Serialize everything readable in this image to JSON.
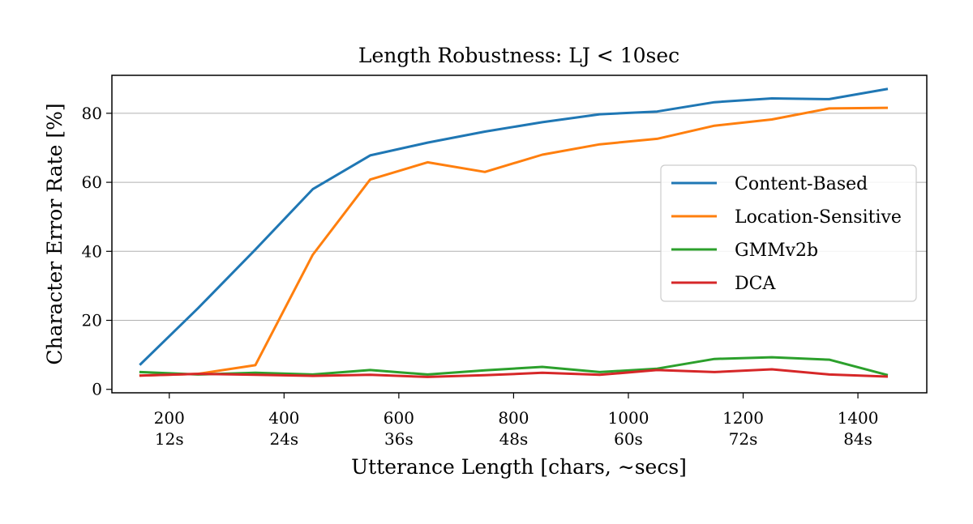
{
  "chart_data": {
    "type": "line",
    "title": "Length Robustness: LJ < 10sec",
    "xlabel": "Utterance Length [chars, ∼secs]",
    "ylabel": "Character Error Rate [%]",
    "xlim": [
      100,
      1520
    ],
    "ylim": [
      -1,
      91
    ],
    "x": [
      150,
      250,
      350,
      450,
      550,
      650,
      750,
      850,
      950,
      1050,
      1150,
      1250,
      1350,
      1450
    ],
    "x_ticks": [
      {
        "value": 200,
        "label": "200",
        "sublabel": "12s"
      },
      {
        "value": 400,
        "label": "400",
        "sublabel": "24s"
      },
      {
        "value": 600,
        "label": "600",
        "sublabel": "36s"
      },
      {
        "value": 800,
        "label": "800",
        "sublabel": "48s"
      },
      {
        "value": 1000,
        "label": "1000",
        "sublabel": "60s"
      },
      {
        "value": 1200,
        "label": "1200",
        "sublabel": "72s"
      },
      {
        "value": 1400,
        "label": "1400",
        "sublabel": "84s"
      }
    ],
    "y_ticks": [
      0,
      20,
      40,
      60,
      80
    ],
    "grid": "horizontal",
    "legend_position": "center-right",
    "series": [
      {
        "name": "Content-Based",
        "color": "#1f77b4",
        "values": [
          7.3,
          23.5,
          40.5,
          58.0,
          67.8,
          71.5,
          74.7,
          77.4,
          79.7,
          80.5,
          83.2,
          84.3,
          84.1,
          87.0
        ]
      },
      {
        "name": "Location-Sensitive",
        "color": "#ff7f0e",
        "values": [
          4.0,
          4.5,
          7.0,
          39.0,
          60.8,
          65.8,
          63.0,
          68.0,
          71.0,
          72.6,
          76.4,
          78.2,
          81.4,
          81.6
        ]
      },
      {
        "name": "GMMv2b",
        "color": "#2ca02c",
        "values": [
          5.0,
          4.3,
          4.8,
          4.3,
          5.6,
          4.3,
          5.5,
          6.5,
          5.0,
          6.0,
          8.8,
          9.3,
          8.6,
          4.2
        ]
      },
      {
        "name": "DCA",
        "color": "#d62728",
        "values": [
          4.0,
          4.5,
          4.2,
          3.9,
          4.2,
          3.6,
          4.1,
          4.8,
          4.2,
          5.6,
          5.0,
          5.8,
          4.3,
          3.7
        ]
      }
    ]
  }
}
